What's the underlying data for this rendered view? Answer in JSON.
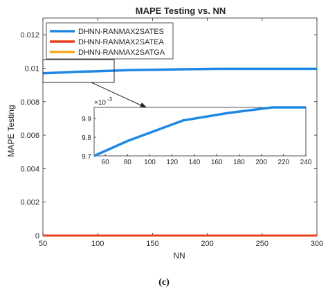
{
  "chart_data": {
    "type": "line",
    "title": "MAPE Testing vs. NN",
    "xlabel": "NN",
    "ylabel": "MAPE Testing",
    "xlim": [
      50,
      300
    ],
    "ylim": [
      0,
      0.013
    ],
    "xticks": [
      50,
      100,
      150,
      200,
      250,
      300
    ],
    "yticks": [
      0,
      0.002,
      0.004,
      0.006,
      0.008,
      0.01,
      0.012
    ],
    "xtick_labels": [
      "50",
      "100",
      "150",
      "200",
      "250",
      "300"
    ],
    "ytick_labels": [
      "0",
      "0.002",
      "0.004",
      "0.006",
      "0.008",
      "0.01",
      "0.012"
    ],
    "legend_position": "top-left",
    "series": [
      {
        "name": "DHNN-RANMAX2SATES",
        "color": "#1f88e5",
        "x": [
          50,
          80,
          130,
          170,
          210,
          240,
          300
        ],
        "y": [
          0.0097,
          0.00978,
          0.00989,
          0.00993,
          0.00996,
          0.00996,
          0.00996
        ]
      },
      {
        "name": "DHNN-RANMAX2SATEA",
        "color": "#e8401c",
        "x": [
          50,
          300
        ],
        "y": [
          0,
          0
        ]
      },
      {
        "name": "DHNN-RANMAX2SATGA",
        "color": "#f5a623",
        "x": [
          50,
          300
        ],
        "y": [
          0,
          0
        ]
      }
    ],
    "inset": {
      "xlim": [
        50,
        240
      ],
      "ylim": [
        9.7,
        9.96
      ],
      "xticks": [
        60,
        80,
        100,
        120,
        140,
        160,
        180,
        200,
        220,
        240
      ],
      "yticks": [
        9.7,
        9.8,
        9.9
      ],
      "xtick_labels": [
        "60",
        "80",
        "100",
        "120",
        "140",
        "160",
        "180",
        "200",
        "220",
        "240"
      ],
      "ytick_labels": [
        "9.7",
        "9.8",
        "9.9"
      ],
      "exponent_label": "×10",
      "exponent_power": "-3",
      "series": {
        "x": [
          50,
          80,
          130,
          170,
          210,
          240
        ],
        "y": [
          9.7,
          9.78,
          9.89,
          9.93,
          9.96,
          9.96
        ]
      }
    }
  },
  "caption": "(c)"
}
